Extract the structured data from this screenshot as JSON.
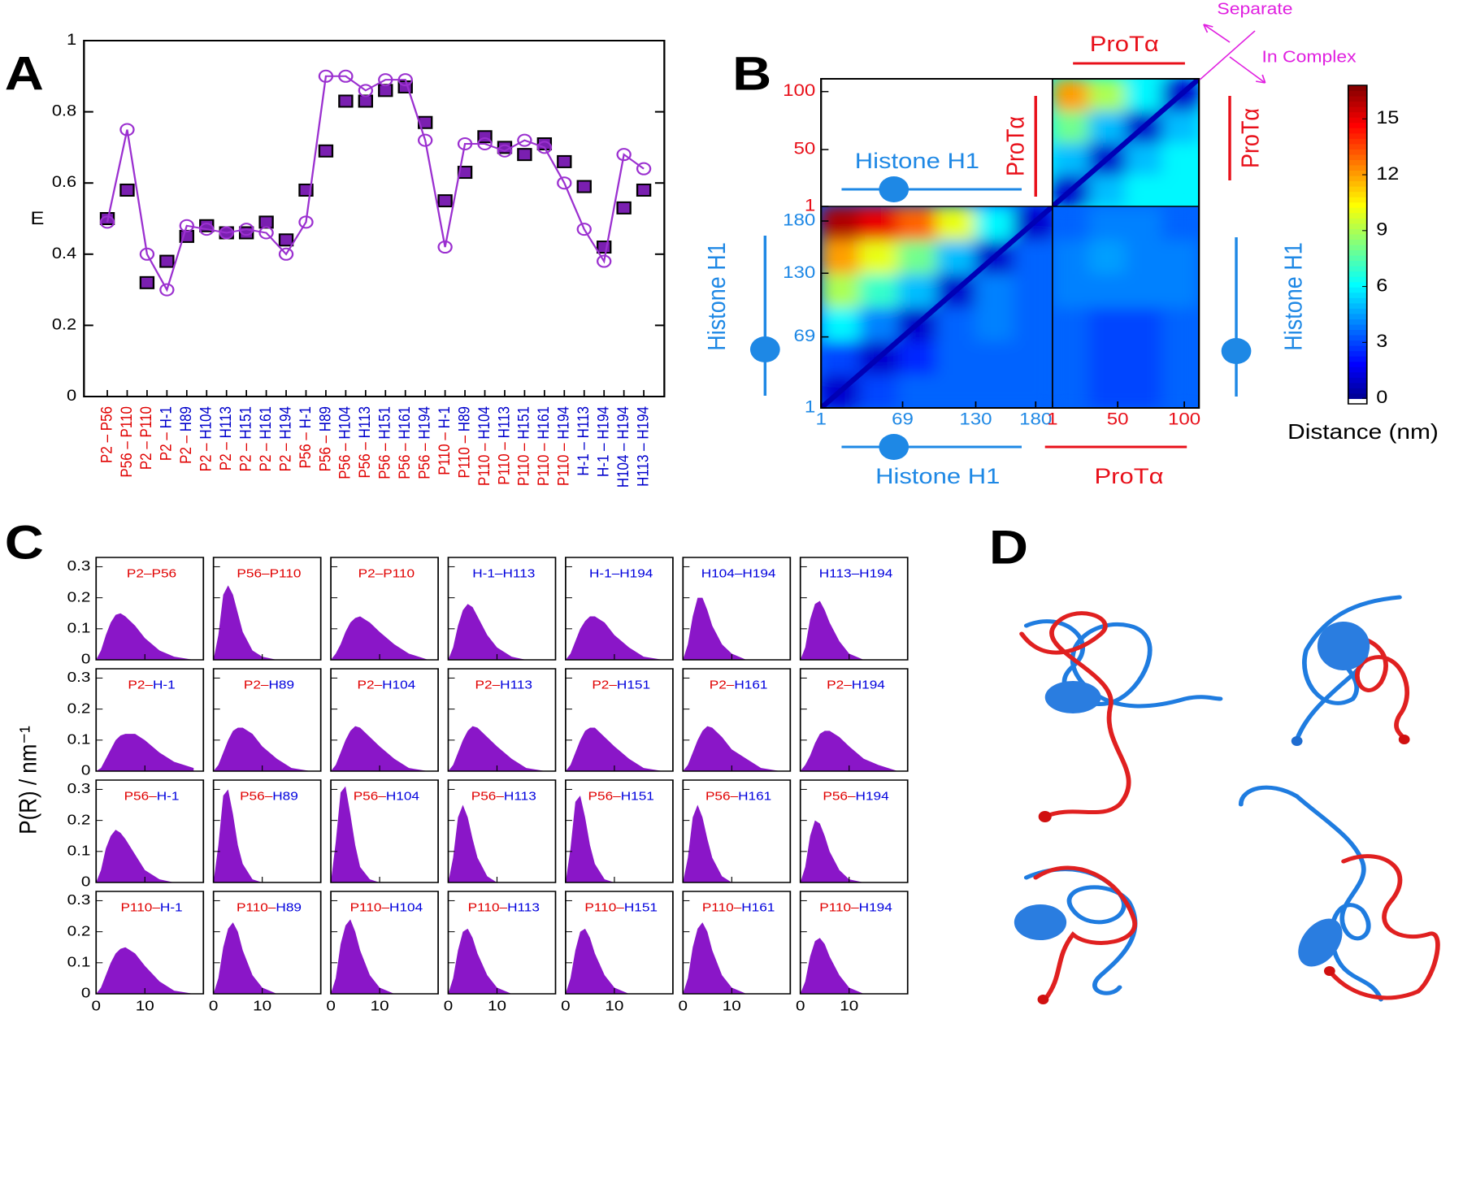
{
  "chart_data": [
    {
      "panel": "A",
      "type": "line",
      "ylabel": "E",
      "prot_color": "#e00000",
      "histone_color": "#0000cc",
      "categories": [
        "P2 – P56",
        "P56 – P110",
        "P2 – P110",
        "P2 – H-1",
        "P2 – H89",
        "P2 – H104",
        "P2 – H113",
        "P2 – H151",
        "P2 – H161",
        "P2 – H194",
        "P56 – H-1",
        "P56 – H89",
        "P56 – H104",
        "P56 – H113",
        "P56 – H151",
        "P56 – H161",
        "P56 – H194",
        "P110 – H-1",
        "P110 – H89",
        "P110 – H104",
        "P110 – H113",
        "P110 – H151",
        "P110 – H161",
        "P110 – H194",
        "H-1 – H113",
        "H-1 – H194",
        "H104 – H194",
        "H113 – H194"
      ],
      "series": [
        {
          "color": "#7a1fb0",
          "marker": "square",
          "line": false,
          "values": [
            0.5,
            0.58,
            0.32,
            0.38,
            0.45,
            0.48,
            0.46,
            0.46,
            0.49,
            0.44,
            0.58,
            0.69,
            0.83,
            0.83,
            0.86,
            0.87,
            0.77,
            0.55,
            0.63,
            0.73,
            0.7,
            0.68,
            0.71,
            0.66,
            0.59,
            0.42,
            0.53,
            0.58
          ]
        },
        {
          "color": "#9b30d0",
          "marker": "circle",
          "line": true,
          "values": [
            0.49,
            0.75,
            0.4,
            0.3,
            0.48,
            0.47,
            0.46,
            0.47,
            0.46,
            0.4,
            0.49,
            0.9,
            0.9,
            0.86,
            0.89,
            0.89,
            0.72,
            0.42,
            0.71,
            0.71,
            0.69,
            0.72,
            0.7,
            0.6,
            0.47,
            0.38,
            0.68,
            0.64
          ]
        }
      ],
      "ylim": [
        0,
        1
      ],
      "yticks": [
        0,
        0.2,
        0.4,
        0.6,
        0.8,
        1
      ]
    },
    {
      "panel": "B",
      "type": "heatmap",
      "colormap": "jet",
      "histone": {
        "label": "Histone H1",
        "color": "#1e88e5",
        "lim": [
          1,
          194
        ],
        "ticks": [
          1,
          69,
          130,
          180
        ]
      },
      "prot": {
        "label": "ProTα",
        "color": "#e8101a",
        "lim": [
          1,
          111
        ],
        "ticks": [
          1,
          50,
          100
        ]
      },
      "annotations": [
        "Separate",
        "In Complex"
      ],
      "annotation_color": "#e020e0",
      "z_histone_histone": [
        [
          1,
          3,
          3.5,
          3.5,
          3.5,
          3.5
        ],
        [
          3,
          1,
          2.5,
          3.5,
          3.5,
          3.5
        ],
        [
          6,
          4,
          1,
          3.5,
          4,
          3.5
        ],
        [
          9,
          7,
          5,
          1,
          4,
          3.5
        ],
        [
          12,
          10,
          8,
          5,
          1,
          3.5
        ],
        [
          16,
          15,
          13,
          10,
          6,
          1
        ]
      ],
      "z_prot_prot": [
        [
          1,
          5,
          6,
          6
        ],
        [
          5,
          1,
          5,
          6
        ],
        [
          8,
          5,
          1,
          5
        ],
        [
          12,
          9,
          6,
          1
        ]
      ],
      "z_histone_prot": [
        [
          3.5,
          3,
          3,
          3.5
        ],
        [
          3.5,
          3,
          3,
          3.5
        ],
        [
          3.5,
          3,
          3,
          3.5
        ],
        [
          4,
          4,
          4,
          4
        ],
        [
          4,
          4.5,
          4,
          4
        ],
        [
          3.5,
          4,
          4,
          3.5
        ]
      ],
      "zlim": [
        -0.3,
        16.8
      ],
      "zticks": [
        0,
        3,
        6,
        9,
        12,
        15
      ],
      "colorbar_label": "Distance (nm)"
    },
    {
      "panel": "C",
      "type": "area",
      "ylabel": "P(R) / nm⁻¹",
      "color": "#8a16c8",
      "prot_color": "#e00000",
      "histone_color": "#0000dd",
      "x": [
        0,
        1,
        2,
        3,
        4,
        5,
        6,
        8,
        10,
        13,
        16,
        20
      ],
      "xlim": [
        0,
        22
      ],
      "xticks": [
        0,
        10
      ],
      "ylim": [
        0,
        0.33
      ],
      "yticks": [
        0,
        0.1,
        0.2,
        0.3
      ],
      "panels": [
        {
          "title": "P2–P56",
          "values": [
            0,
            0.03,
            0.08,
            0.12,
            0.145,
            0.15,
            0.14,
            0.11,
            0.07,
            0.03,
            0.01,
            0
          ]
        },
        {
          "title": "P56–P110",
          "values": [
            0,
            0.08,
            0.21,
            0.24,
            0.21,
            0.15,
            0.09,
            0.03,
            0.01,
            0,
            0,
            0
          ]
        },
        {
          "title": "P2–P110",
          "values": [
            0,
            0.02,
            0.05,
            0.09,
            0.12,
            0.135,
            0.14,
            0.12,
            0.09,
            0.05,
            0.02,
            0
          ]
        },
        {
          "title": "H-1–H113",
          "values": [
            0,
            0.04,
            0.11,
            0.16,
            0.18,
            0.17,
            0.14,
            0.08,
            0.04,
            0.01,
            0,
            0
          ]
        },
        {
          "title": "H-1–H194",
          "values": [
            0,
            0.02,
            0.06,
            0.1,
            0.125,
            0.14,
            0.14,
            0.12,
            0.08,
            0.04,
            0.01,
            0
          ]
        },
        {
          "title": "H104–H194",
          "values": [
            0,
            0.05,
            0.14,
            0.2,
            0.2,
            0.16,
            0.11,
            0.05,
            0.02,
            0,
            0,
            0
          ]
        },
        {
          "title": "H113–H194",
          "values": [
            0,
            0.04,
            0.13,
            0.18,
            0.19,
            0.16,
            0.12,
            0.06,
            0.02,
            0,
            0,
            0
          ]
        },
        {
          "title": "P2–H-1",
          "values": [
            0,
            0.01,
            0.04,
            0.07,
            0.1,
            0.115,
            0.12,
            0.12,
            0.1,
            0.06,
            0.03,
            0.01
          ]
        },
        {
          "title": "P2–H89",
          "values": [
            0,
            0.02,
            0.06,
            0.1,
            0.13,
            0.14,
            0.14,
            0.12,
            0.08,
            0.04,
            0.01,
            0
          ]
        },
        {
          "title": "P2–H104",
          "values": [
            0,
            0.02,
            0.06,
            0.1,
            0.13,
            0.145,
            0.14,
            0.11,
            0.08,
            0.04,
            0.01,
            0
          ]
        },
        {
          "title": "P2–H113",
          "values": [
            0,
            0.02,
            0.06,
            0.1,
            0.13,
            0.145,
            0.14,
            0.11,
            0.08,
            0.04,
            0.01,
            0
          ]
        },
        {
          "title": "P2–H151",
          "values": [
            0,
            0.02,
            0.06,
            0.1,
            0.13,
            0.14,
            0.14,
            0.11,
            0.08,
            0.04,
            0.01,
            0
          ]
        },
        {
          "title": "P2–H161",
          "values": [
            0,
            0.02,
            0.06,
            0.1,
            0.13,
            0.145,
            0.14,
            0.11,
            0.07,
            0.04,
            0.01,
            0
          ]
        },
        {
          "title": "P2–H194",
          "values": [
            0,
            0.02,
            0.05,
            0.09,
            0.12,
            0.13,
            0.13,
            0.11,
            0.08,
            0.04,
            0.02,
            0
          ]
        },
        {
          "title": "P56–H-1",
          "values": [
            0,
            0.04,
            0.11,
            0.15,
            0.17,
            0.16,
            0.14,
            0.09,
            0.04,
            0.01,
            0,
            0
          ]
        },
        {
          "title": "P56–H89",
          "values": [
            0,
            0.12,
            0.28,
            0.3,
            0.22,
            0.12,
            0.06,
            0.01,
            0,
            0,
            0,
            0
          ]
        },
        {
          "title": "P56–H104",
          "values": [
            0,
            0.13,
            0.29,
            0.31,
            0.22,
            0.12,
            0.05,
            0.01,
            0,
            0,
            0,
            0
          ]
        },
        {
          "title": "P56–H113",
          "values": [
            0,
            0.08,
            0.21,
            0.25,
            0.21,
            0.14,
            0.08,
            0.02,
            0,
            0,
            0,
            0
          ]
        },
        {
          "title": "P56–H151",
          "values": [
            0,
            0.11,
            0.26,
            0.28,
            0.21,
            0.12,
            0.06,
            0.01,
            0,
            0,
            0,
            0
          ]
        },
        {
          "title": "P56–H161",
          "values": [
            0,
            0.08,
            0.21,
            0.25,
            0.21,
            0.14,
            0.08,
            0.02,
            0,
            0,
            0,
            0
          ]
        },
        {
          "title": "P56–H194",
          "values": [
            0,
            0.05,
            0.15,
            0.2,
            0.19,
            0.15,
            0.1,
            0.04,
            0.01,
            0,
            0,
            0
          ]
        },
        {
          "title": "P110–H-1",
          "values": [
            0,
            0.02,
            0.06,
            0.1,
            0.13,
            0.145,
            0.15,
            0.13,
            0.09,
            0.04,
            0.01,
            0
          ]
        },
        {
          "title": "P110–H89",
          "values": [
            0,
            0.05,
            0.15,
            0.21,
            0.23,
            0.2,
            0.14,
            0.06,
            0.02,
            0,
            0,
            0
          ]
        },
        {
          "title": "P110–H104",
          "values": [
            0,
            0.05,
            0.16,
            0.22,
            0.24,
            0.2,
            0.14,
            0.06,
            0.02,
            0,
            0,
            0
          ]
        },
        {
          "title": "P110–H113",
          "values": [
            0,
            0.05,
            0.14,
            0.2,
            0.21,
            0.18,
            0.13,
            0.06,
            0.02,
            0,
            0,
            0
          ]
        },
        {
          "title": "P110–H151",
          "values": [
            0,
            0.05,
            0.14,
            0.2,
            0.21,
            0.18,
            0.13,
            0.06,
            0.02,
            0,
            0,
            0
          ]
        },
        {
          "title": "P110–H161",
          "values": [
            0,
            0.05,
            0.15,
            0.21,
            0.23,
            0.2,
            0.14,
            0.06,
            0.02,
            0,
            0,
            0
          ]
        },
        {
          "title": "P110–H194",
          "values": [
            0,
            0.04,
            0.12,
            0.17,
            0.18,
            0.16,
            0.12,
            0.06,
            0.02,
            0,
            0,
            0
          ]
        }
      ]
    }
  ],
  "figure_d": {
    "panel": "D"
  }
}
